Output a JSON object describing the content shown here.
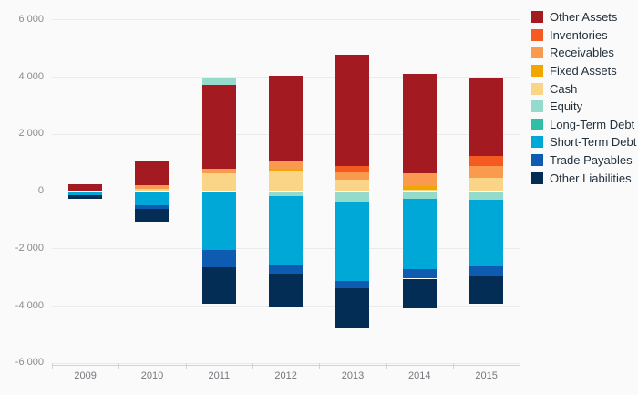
{
  "chart_data": {
    "type": "bar",
    "variant": "stacked-column",
    "title": "",
    "xlabel": "",
    "ylabel": "",
    "ylim": [
      -6000,
      6000
    ],
    "grid": true,
    "legend_position": "right",
    "categories": [
      "2009",
      "2010",
      "2011",
      "2012",
      "2013",
      "2014",
      "2015"
    ],
    "y_ticks": [
      {
        "label": "6 000",
        "value": 6000
      },
      {
        "label": "4 000",
        "value": 4000
      },
      {
        "label": "2 000",
        "value": 2000
      },
      {
        "label": "0",
        "value": 0
      },
      {
        "label": "-2 000",
        "value": -2000
      },
      {
        "label": "-4 000",
        "value": -4000
      },
      {
        "label": "-6 000",
        "value": -6000
      }
    ],
    "series": [
      {
        "name": "Other Assets",
        "color": "#A41A21",
        "values": [
          230,
          830,
          2910,
          2960,
          3870,
          3460,
          2700
        ]
      },
      {
        "name": "Inventories",
        "color": "#F55B20",
        "values": [
          0,
          0,
          0,
          0,
          180,
          0,
          370
        ]
      },
      {
        "name": "Receivables",
        "color": "#FA9A4F",
        "values": [
          0,
          130,
          160,
          270,
          310,
          440,
          420
        ]
      },
      {
        "name": "Fixed Assets",
        "color": "#F3A500",
        "values": [
          0,
          0,
          0,
          60,
          0,
          130,
          0
        ]
      },
      {
        "name": "Cash",
        "color": "#FAD587",
        "values": [
          0,
          70,
          630,
          730,
          390,
          50,
          450
        ]
      },
      {
        "name": "Equity",
        "color": "#94DBCB",
        "values": [
          0,
          0,
          240,
          -170,
          -360,
          -260,
          -300
        ]
      },
      {
        "name": "Long-Term Debt",
        "color": "#2DC0A5",
        "values": [
          0,
          0,
          0,
          0,
          0,
          0,
          0
        ]
      },
      {
        "name": "Short-Term Debt",
        "color": "#00A8D8",
        "values": [
          -140,
          -480,
          -2070,
          -2380,
          -2770,
          -2480,
          -2330
        ]
      },
      {
        "name": "Trade Payables",
        "color": "#0D5CB1",
        "values": [
          0,
          -140,
          -580,
          -340,
          -270,
          -320,
          -350
        ]
      },
      {
        "name": "Other Liabilities",
        "color": "#032D55",
        "values": [
          -130,
          -450,
          -1300,
          -1140,
          -1390,
          -1020,
          -960
        ]
      }
    ],
    "stack_order_positive": [
      "Cash",
      "Fixed Assets",
      "Receivables",
      "Inventories",
      "Other Assets",
      "Equity",
      "Long-Term Debt"
    ],
    "stack_order_negative": [
      "Equity",
      "Long-Term Debt",
      "Short-Term Debt",
      "Trade Payables",
      "Other Liabilities"
    ]
  },
  "legend": {
    "items": [
      {
        "label": "Other Assets",
        "color": "#A41A21"
      },
      {
        "label": "Inventories",
        "color": "#F55B20"
      },
      {
        "label": "Receivables",
        "color": "#FA9A4F"
      },
      {
        "label": "Fixed Assets",
        "color": "#F3A500"
      },
      {
        "label": "Cash",
        "color": "#FAD587"
      },
      {
        "label": "Equity",
        "color": "#94DBCB"
      },
      {
        "label": "Long-Term Debt",
        "color": "#2DC0A5"
      },
      {
        "label": "Short-Term Debt",
        "color": "#00A8D8"
      },
      {
        "label": "Trade Payables",
        "color": "#0D5CB1"
      },
      {
        "label": "Other Liabilities",
        "color": "#032D55"
      }
    ]
  }
}
